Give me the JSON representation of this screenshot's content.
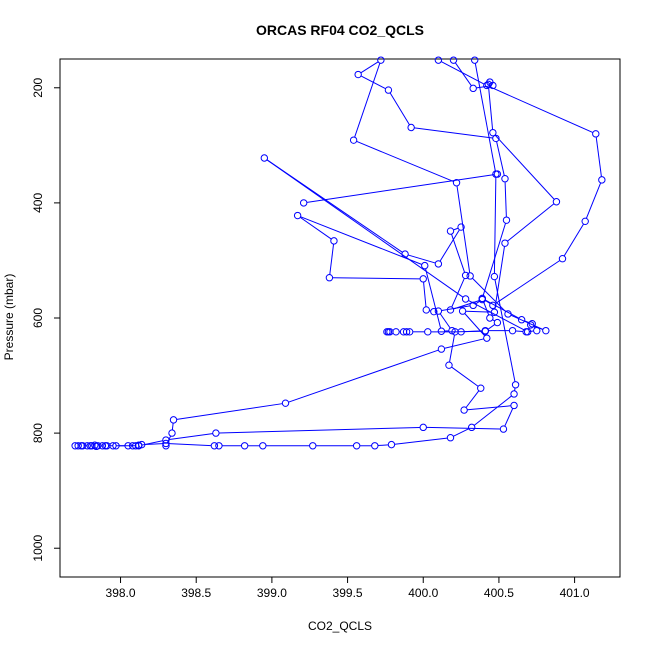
{
  "chart_data": {
    "type": "line",
    "title": "ORCAS RF04 CO2_QCLS",
    "xlabel": "CO2_QCLS",
    "ylabel": "Pressure (mbar)",
    "xlim": [
      397.6,
      401.3
    ],
    "ylim": [
      1050,
      150
    ],
    "y_reversed": true,
    "x_ticks": [
      398.0,
      398.5,
      399.0,
      399.5,
      400.0,
      400.5,
      401.0
    ],
    "x_tick_labels": [
      "398.0",
      "398.5",
      "399.0",
      "399.5",
      "400.0",
      "400.5",
      "401.0"
    ],
    "y_ticks": [
      200,
      400,
      600,
      800,
      1000
    ],
    "y_tick_labels": [
      "200",
      "400",
      "600",
      "800",
      "1000"
    ],
    "grid": false,
    "legend": "none",
    "series": [
      {
        "color": "#0000ff",
        "marker": "open-circle",
        "points": [
          [
            397.72,
            822
          ],
          [
            397.75,
            822
          ],
          [
            397.78,
            822
          ],
          [
            397.81,
            822
          ],
          [
            397.83,
            821
          ],
          [
            397.85,
            822
          ],
          [
            397.88,
            822
          ],
          [
            397.91,
            822
          ],
          [
            397.95,
            822
          ],
          [
            398.05,
            822
          ],
          [
            398.08,
            822
          ],
          [
            398.1,
            822
          ],
          [
            398.12,
            821
          ],
          [
            398.14,
            820
          ],
          [
            398.3,
            818
          ],
          [
            398.62,
            822
          ],
          [
            398.65,
            822
          ],
          [
            398.82,
            822
          ],
          [
            398.94,
            822
          ],
          [
            399.27,
            822
          ],
          [
            399.56,
            822
          ],
          [
            399.68,
            822
          ],
          [
            399.79,
            820
          ],
          [
            400.18,
            808
          ],
          [
            400.32,
            790
          ],
          [
            400.6,
            732
          ],
          [
            400.61,
            716
          ],
          [
            400.47,
            528
          ],
          [
            400.48,
            350
          ],
          [
            400.34,
            152
          ]
        ]
      },
      {
        "color": "#0000ff",
        "marker": "open-circle",
        "points": [
          [
            397.7,
            822
          ],
          [
            397.74,
            822
          ],
          [
            397.8,
            822
          ],
          [
            397.84,
            823
          ],
          [
            397.9,
            822
          ],
          [
            397.97,
            822
          ],
          [
            398.12,
            822
          ],
          [
            398.3,
            812
          ],
          [
            398.63,
            800
          ],
          [
            400.0,
            790
          ],
          [
            400.53,
            793
          ],
          [
            400.6,
            752
          ],
          [
            400.27,
            760
          ],
          [
            400.38,
            722
          ],
          [
            400.17,
            682
          ],
          [
            400.21,
            624
          ],
          [
            400.41,
            623
          ],
          [
            400.49,
            608
          ],
          [
            400.44,
            600
          ],
          [
            400.39,
            566
          ],
          [
            400.65,
            603
          ],
          [
            400.72,
            610
          ],
          [
            400.75,
            622
          ],
          [
            400.68,
            624
          ],
          [
            400.59,
            622
          ],
          [
            400.41,
            622
          ],
          [
            400.25,
            624
          ],
          [
            400.03,
            624
          ],
          [
            399.91,
            624
          ],
          [
            399.89,
            624
          ],
          [
            399.87,
            624
          ],
          [
            399.82,
            624
          ],
          [
            399.78,
            624
          ],
          [
            399.76,
            624
          ],
          [
            399.77,
            624
          ]
        ]
      },
      {
        "color": "#0000ff",
        "marker": "open-circle",
        "points": [
          [
            398.3,
            822
          ],
          [
            398.34,
            800
          ],
          [
            398.35,
            777
          ],
          [
            399.09,
            748
          ],
          [
            400.12,
            654
          ],
          [
            400.42,
            635
          ],
          [
            400.26,
            588
          ],
          [
            400.47,
            590
          ],
          [
            400.54,
            470
          ],
          [
            400.88,
            398
          ],
          [
            400.46,
            278
          ],
          [
            400.43,
            194
          ],
          [
            400.44,
            190
          ],
          [
            400.46,
            196
          ],
          [
            400.33,
            201
          ],
          [
            400.2,
            152
          ]
        ]
      },
      {
        "color": "#0000ff",
        "marker": "open-circle",
        "points": [
          [
            400.07,
            589
          ],
          [
            400.02,
            586
          ],
          [
            400.0,
            532
          ],
          [
            399.38,
            530
          ],
          [
            399.41,
            466
          ],
          [
            399.17,
            422
          ],
          [
            400.01,
            509
          ],
          [
            400.12,
            623
          ],
          [
            400.19,
            622
          ],
          [
            400.1,
            588
          ],
          [
            400.33,
            578
          ],
          [
            400.39,
            568
          ],
          [
            400.18,
            586
          ],
          [
            400.28,
            526
          ],
          [
            400.18,
            449
          ],
          [
            400.25,
            442
          ],
          [
            400.1,
            506
          ],
          [
            399.88,
            489
          ],
          [
            398.95,
            322
          ],
          [
            400.28,
            567
          ],
          [
            400.69,
            624
          ],
          [
            400.71,
            612
          ],
          [
            400.81,
            622
          ],
          [
            400.56,
            593
          ],
          [
            400.31,
            527
          ],
          [
            400.22,
            365
          ],
          [
            399.54,
            291
          ],
          [
            399.72,
            152
          ],
          [
            399.57,
            177
          ],
          [
            399.77,
            204
          ],
          [
            399.92,
            269
          ],
          [
            400.48,
            288
          ],
          [
            400.54,
            358
          ],
          [
            400.55,
            430
          ],
          [
            400.39,
            566
          ],
          [
            400.46,
            578
          ],
          [
            400.92,
            497
          ],
          [
            401.07,
            432
          ],
          [
            401.18,
            360
          ],
          [
            401.14,
            280
          ],
          [
            400.42,
            196
          ],
          [
            400.1,
            152
          ]
        ]
      },
      {
        "color": "#0000ff",
        "marker": "open-circle",
        "points": [
          [
            399.21,
            400
          ],
          [
            400.49,
            350
          ]
        ]
      }
    ]
  }
}
